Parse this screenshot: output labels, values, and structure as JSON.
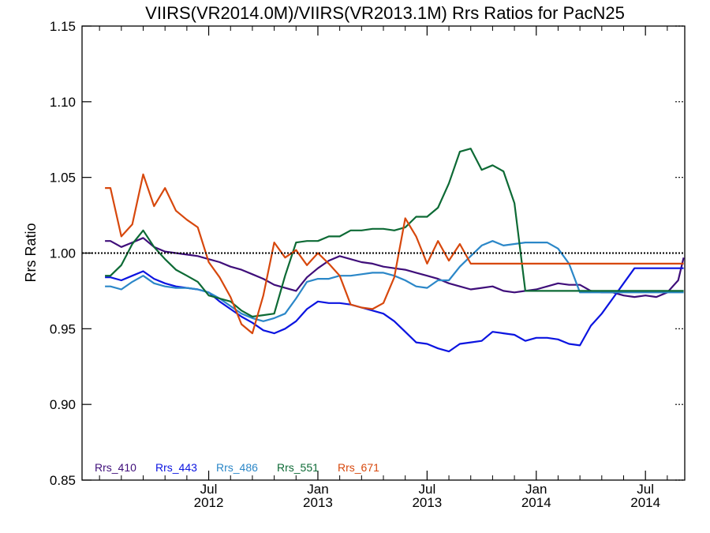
{
  "chart_data": {
    "type": "line",
    "title": "VIIRS(VR2014.0M)/VIIRS(VR2013.1M)  Rrs Ratios for PacN25",
    "ylabel": "Rrs Ratio",
    "xlabel": "",
    "ylim": [
      0.85,
      1.15
    ],
    "xlim": [
      -5.8,
      21.8
    ],
    "y_ticks": [
      {
        "value": 0.85,
        "label": "0.85"
      },
      {
        "value": 0.9,
        "label": "0.90"
      },
      {
        "value": 0.95,
        "label": "0.95"
      },
      {
        "value": 1.0,
        "label": "1.00"
      },
      {
        "value": 1.05,
        "label": "1.05"
      },
      {
        "value": 1.1,
        "label": "1.10"
      },
      {
        "value": 1.15,
        "label": "1.15"
      }
    ],
    "x_ticks": [
      {
        "value": 0,
        "month": "Jul",
        "year": "2012"
      },
      {
        "value": 5,
        "month": "Jan",
        "year": "2013"
      },
      {
        "value": 10,
        "month": "Jul",
        "year": "2013"
      },
      {
        "value": 15,
        "month": "Jan",
        "year": "2014"
      },
      {
        "value": 20,
        "month": "Jul",
        "year": "2014"
      }
    ],
    "x_minor_ticks": [
      -5,
      -4,
      -3,
      -2,
      -1,
      1,
      2,
      3,
      4,
      6,
      7,
      8,
      9,
      11,
      12,
      13,
      14,
      16,
      17,
      18,
      19,
      21
    ],
    "reference_line": 1.0,
    "x": [
      -4.75,
      -4.5,
      -4.0,
      -3.5,
      -3.0,
      -2.5,
      -2.0,
      -1.5,
      -1.0,
      -0.5,
      0.0,
      0.5,
      1.0,
      1.5,
      2.0,
      2.5,
      3.0,
      3.5,
      4.0,
      4.5,
      5.0,
      5.5,
      6.0,
      6.5,
      7.0,
      7.5,
      8.0,
      8.5,
      9.0,
      9.5,
      10.0,
      10.5,
      11.0,
      11.5,
      12.0,
      12.5,
      13.0,
      13.5,
      14.0,
      14.5,
      15.0,
      15.5,
      16.0,
      16.5,
      17.0,
      17.5,
      18.0,
      18.5,
      19.0,
      19.5,
      20.0,
      20.5,
      21.0,
      21.5,
      21.75
    ],
    "series": [
      {
        "name": "Rrs_410",
        "color": "#3f0e7a",
        "values": [
          1.008,
          1.008,
          1.004,
          1.007,
          1.01,
          1.004,
          1.001,
          1.0,
          0.999,
          0.998,
          0.996,
          0.994,
          0.991,
          0.989,
          0.986,
          0.983,
          0.979,
          0.977,
          0.975,
          0.984,
          0.99,
          0.995,
          0.998,
          0.996,
          0.994,
          0.993,
          0.991,
          0.99,
          0.989,
          0.987,
          0.985,
          0.983,
          0.98,
          0.978,
          0.976,
          0.977,
          0.978,
          0.975,
          0.974,
          0.975,
          0.976,
          0.978,
          0.98,
          0.979,
          0.979,
          0.975,
          0.974,
          0.974,
          0.972,
          0.971,
          0.972,
          0.971,
          0.974,
          0.982,
          0.997
        ]
      },
      {
        "name": "Rrs_443",
        "color": "#0b14e0",
        "values": [
          0.984,
          0.984,
          0.982,
          0.985,
          0.988,
          0.983,
          0.98,
          0.978,
          0.977,
          0.976,
          0.974,
          0.968,
          0.963,
          0.958,
          0.954,
          0.949,
          0.947,
          0.95,
          0.955,
          0.963,
          0.968,
          0.967,
          0.967,
          0.966,
          0.964,
          0.962,
          0.96,
          0.955,
          0.948,
          0.941,
          0.94,
          0.937,
          0.935,
          0.94,
          0.941,
          0.942,
          0.948,
          0.947,
          0.946,
          0.942,
          0.944,
          0.944,
          0.943,
          0.94,
          0.939,
          0.952,
          0.96,
          0.97,
          0.98,
          0.99,
          0.99,
          0.99,
          0.99,
          0.99,
          0.99
        ]
      },
      {
        "name": "Rrs_486",
        "color": "#2b87c8",
        "values": [
          0.978,
          0.978,
          0.976,
          0.981,
          0.985,
          0.98,
          0.978,
          0.977,
          0.977,
          0.976,
          0.974,
          0.97,
          0.965,
          0.96,
          0.957,
          0.955,
          0.957,
          0.96,
          0.97,
          0.981,
          0.983,
          0.983,
          0.985,
          0.985,
          0.986,
          0.987,
          0.987,
          0.985,
          0.982,
          0.978,
          0.977,
          0.982,
          0.982,
          0.991,
          0.998,
          1.005,
          1.008,
          1.005,
          1.006,
          1.007,
          1.007,
          1.007,
          1.003,
          0.993,
          0.974,
          0.974,
          0.974,
          0.974,
          0.974,
          0.974,
          0.974,
          0.974,
          0.974,
          0.974,
          0.974
        ]
      },
      {
        "name": "Rrs_551",
        "color": "#0d6a35",
        "values": [
          0.985,
          0.985,
          0.992,
          1.006,
          1.015,
          1.004,
          0.996,
          0.989,
          0.985,
          0.981,
          0.972,
          0.97,
          0.968,
          0.962,
          0.958,
          0.959,
          0.96,
          0.985,
          1.007,
          1.008,
          1.008,
          1.011,
          1.011,
          1.015,
          1.015,
          1.016,
          1.016,
          1.015,
          1.017,
          1.024,
          1.024,
          1.03,
          1.046,
          1.067,
          1.069,
          1.055,
          1.058,
          1.054,
          1.033,
          0.975,
          0.975,
          0.975,
          0.975,
          0.975,
          0.975,
          0.975,
          0.975,
          0.975,
          0.975,
          0.975,
          0.975,
          0.975,
          0.975,
          0.975,
          0.975
        ]
      },
      {
        "name": "Rrs_671",
        "color": "#d7480d",
        "values": [
          1.043,
          1.043,
          1.011,
          1.019,
          1.052,
          1.031,
          1.043,
          1.028,
          1.022,
          1.017,
          0.994,
          0.984,
          0.971,
          0.953,
          0.947,
          0.972,
          1.007,
          0.997,
          1.002,
          0.992,
          1.0,
          0.993,
          0.985,
          0.966,
          0.964,
          0.963,
          0.967,
          0.984,
          1.023,
          1.011,
          0.993,
          1.008,
          0.995,
          1.006,
          0.993,
          0.993,
          0.993,
          0.993,
          0.993,
          0.993,
          0.993,
          0.993,
          0.993,
          0.993,
          0.993,
          0.993,
          0.993,
          0.993,
          0.993,
          0.993,
          0.993,
          0.993,
          0.993,
          0.993,
          0.993
        ]
      }
    ]
  }
}
